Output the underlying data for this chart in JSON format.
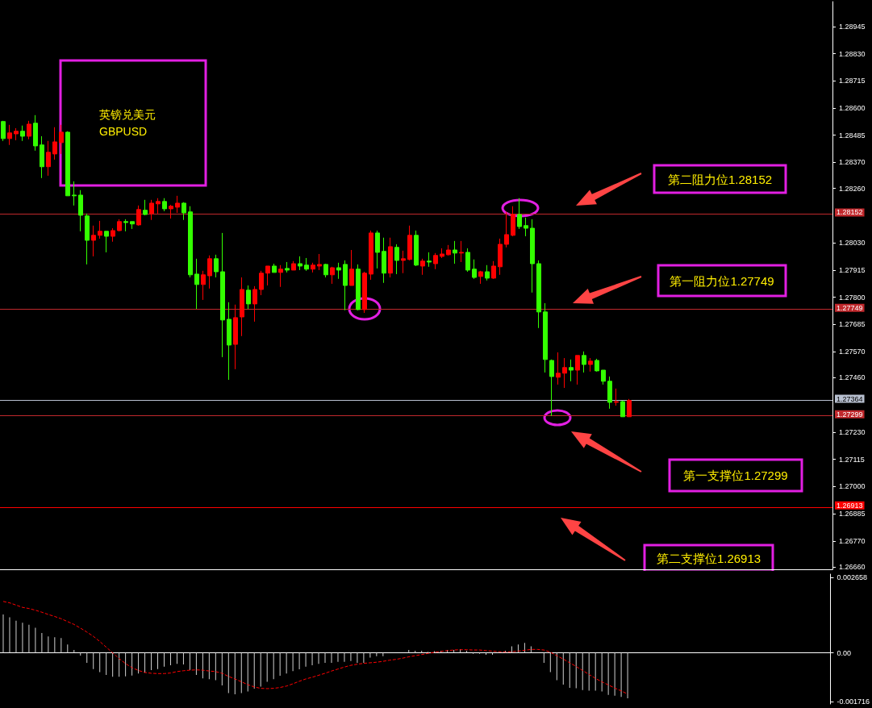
{
  "chart_data": [
    {
      "type": "candlestick",
      "title": "英镑兑美元",
      "subtitle": "GBPUSD",
      "categories": [
        null,
        null,
        null,
        null,
        null,
        null,
        null,
        null,
        null,
        null,
        null,
        null,
        null,
        null,
        null,
        null,
        null,
        null,
        null,
        null,
        null,
        null,
        null,
        null,
        null,
        null,
        null,
        null,
        null,
        null,
        null,
        null,
        null,
        null,
        null,
        null,
        null,
        null,
        null,
        null,
        null,
        null,
        null,
        null,
        null,
        null,
        null,
        null,
        null,
        null,
        null,
        null,
        null,
        null,
        null,
        null,
        null,
        null,
        null,
        null,
        null,
        null,
        null,
        null,
        null,
        null,
        null,
        null,
        null,
        null,
        null,
        null,
        null,
        null,
        null,
        null,
        null,
        null,
        null,
        null,
        null,
        null,
        null,
        null,
        null,
        null,
        null,
        null,
        null,
        null,
        null,
        null,
        null,
        null,
        null,
        null,
        null,
        null,
        null,
        null,
        null,
        null,
        null,
        null,
        null,
        null,
        null,
        null,
        null,
        null,
        null,
        null,
        null,
        null,
        null,
        null,
        null,
        null,
        null,
        null,
        null,
        null,
        null,
        null,
        null,
        null,
        null,
        null,
        null
      ],
      "ohlc": [
        [
          1.28543,
          1.28546,
          1.28461,
          1.28471
        ],
        [
          1.28471,
          1.28529,
          1.28444,
          1.28495
        ],
        [
          1.28491,
          1.28515,
          1.28464,
          1.28502
        ],
        [
          1.28502,
          1.28526,
          1.28461,
          1.28481
        ],
        [
          1.28481,
          1.28546,
          1.28468,
          1.28532
        ],
        [
          1.28536,
          1.2857,
          1.2842,
          1.2844
        ],
        [
          1.28444,
          1.28481,
          1.28304,
          1.28352
        ],
        [
          1.28352,
          1.28461,
          1.28314,
          1.28413
        ],
        [
          1.28406,
          1.28519,
          1.28382,
          1.28457
        ],
        [
          1.28454,
          1.28529,
          1.28406,
          1.28498
        ],
        [
          1.28498,
          1.28502,
          1.28229,
          1.28229
        ],
        [
          1.28232,
          1.2829,
          1.28188,
          1.28229
        ],
        [
          1.28232,
          1.28253,
          1.28079,
          1.28147
        ],
        [
          1.28144,
          1.28154,
          1.27939,
          1.28041
        ],
        [
          1.28041,
          1.28103,
          1.27973,
          1.28062
        ],
        [
          1.28062,
          1.28123,
          1.28048,
          1.28079
        ],
        [
          1.28079,
          1.28079,
          1.2799,
          1.28058
        ],
        [
          1.28058,
          1.28092,
          1.28035,
          1.28082
        ],
        [
          1.28082,
          1.2813,
          1.28079,
          1.2812
        ],
        [
          1.2812,
          1.2813,
          1.28079,
          1.28116
        ],
        [
          1.2812,
          1.2812,
          1.28089,
          1.2811
        ],
        [
          1.28106,
          1.28188,
          1.28103,
          1.28171
        ],
        [
          1.28168,
          1.28212,
          1.28147,
          1.2815
        ],
        [
          1.28154,
          1.28212,
          1.28127,
          1.28198
        ],
        [
          1.28195,
          1.28219,
          1.28154,
          1.28205
        ],
        [
          1.28205,
          1.28219,
          1.28164,
          1.28174
        ],
        [
          1.28174,
          1.28191,
          1.28133,
          1.28185
        ],
        [
          1.28181,
          1.28229,
          1.28157,
          1.28198
        ],
        [
          1.28198,
          1.28202,
          1.28127,
          1.28157
        ],
        [
          1.28161,
          1.28185,
          1.27884,
          1.27895
        ],
        [
          1.27898,
          1.27963,
          1.27751,
          1.27854
        ],
        [
          1.27854,
          1.27912,
          1.27789,
          1.27895
        ],
        [
          1.27891,
          1.27977,
          1.27837,
          1.27963
        ],
        [
          1.27963,
          1.2798,
          1.27884,
          1.27908
        ],
        [
          1.27908,
          1.28072,
          1.27547,
          1.27704
        ],
        [
          1.27707,
          1.27779,
          1.27451,
          1.27598
        ],
        [
          1.27601,
          1.27769,
          1.27496,
          1.27714
        ],
        [
          1.27717,
          1.27884,
          1.27636,
          1.27833
        ],
        [
          1.2783,
          1.2785,
          1.27751,
          1.27772
        ],
        [
          1.27772,
          1.27847,
          1.27697,
          1.27833
        ],
        [
          1.27833,
          1.27912,
          1.27809,
          1.27902
        ],
        [
          1.27902,
          1.27932,
          1.2785,
          1.27932
        ],
        [
          1.27932,
          1.27942,
          1.27905,
          1.27905
        ],
        [
          1.27905,
          1.27936,
          1.27844,
          1.27919
        ],
        [
          1.27922,
          1.27949,
          1.27905,
          1.27915
        ],
        [
          1.27915,
          1.27953,
          1.27915,
          1.27942
        ],
        [
          1.27942,
          1.27973,
          1.27915,
          1.27932
        ],
        [
          1.27936,
          1.27966,
          1.27912,
          1.27919
        ],
        [
          1.27919,
          1.27946,
          1.27905,
          1.27936
        ],
        [
          1.27932,
          1.27983,
          1.27915,
          1.27939
        ],
        [
          1.27939,
          1.27942,
          1.27884,
          1.27895
        ],
        [
          1.27895,
          1.27929,
          1.27857,
          1.27925
        ],
        [
          1.27925,
          1.27946,
          1.27878,
          1.27915
        ],
        [
          1.27939,
          1.27956,
          1.27745,
          1.2785
        ],
        [
          1.2785,
          1.28,
          1.2785,
          1.27919
        ],
        [
          1.27919,
          1.27939,
          1.27745,
          1.27748
        ],
        [
          1.27748,
          1.27908,
          1.27734,
          1.27902
        ],
        [
          1.27898,
          1.28082,
          1.27874,
          1.28072
        ],
        [
          1.28072,
          1.28082,
          1.27922,
          1.2799
        ],
        [
          1.27994,
          1.28052,
          1.27861,
          1.27902
        ],
        [
          1.27902,
          1.28052,
          1.27884,
          1.28014
        ],
        [
          1.28011,
          1.28024,
          1.27898,
          1.27956
        ],
        [
          1.27956,
          1.27997,
          1.27902,
          1.27963
        ],
        [
          1.2796,
          1.28103,
          1.27956,
          1.28062
        ],
        [
          1.28062,
          1.28082,
          1.27932,
          1.27936
        ],
        [
          1.27932,
          1.27963,
          1.27895,
          1.27953
        ],
        [
          1.27953,
          1.2799,
          1.27929,
          1.27949
        ],
        [
          1.27942,
          1.27987,
          1.27919,
          1.27977
        ],
        [
          1.27973,
          1.28007,
          1.27966,
          1.27983
        ],
        [
          1.2798,
          1.28021,
          1.27977,
          1.28
        ],
        [
          1.28,
          1.28038,
          1.27942,
          1.27987
        ],
        [
          1.27987,
          1.28038,
          1.27949,
          1.2799
        ],
        [
          1.2799,
          1.28007,
          1.27908,
          1.27915
        ],
        [
          1.27919,
          1.2796,
          1.27878,
          1.27884
        ],
        [
          1.27888,
          1.27912,
          1.27857,
          1.27908
        ],
        [
          1.27908,
          1.27936,
          1.27871,
          1.27881
        ],
        [
          1.27881,
          1.27953,
          1.27878,
          1.27932
        ],
        [
          1.27929,
          1.28048,
          1.27895,
          1.28024
        ],
        [
          1.28024,
          1.28161,
          1.28011,
          1.28065
        ],
        [
          1.28062,
          1.28185,
          1.28058,
          1.2815
        ],
        [
          1.2815,
          1.28219,
          1.28089,
          1.28099
        ],
        [
          1.28103,
          1.28137,
          1.28058,
          1.28092
        ],
        [
          1.28092,
          1.2813,
          1.2782,
          1.27942
        ],
        [
          1.27942,
          1.27956,
          1.2767,
          1.27738
        ],
        [
          1.27738,
          1.27775,
          1.27482,
          1.27537
        ],
        [
          1.27533,
          1.27537,
          1.27298,
          1.27465
        ],
        [
          1.27462,
          1.27567,
          1.27431,
          1.27479
        ],
        [
          1.27479,
          1.27543,
          1.27417,
          1.27503
        ],
        [
          1.27503,
          1.27537,
          1.27445,
          1.27492
        ],
        [
          1.27492,
          1.27554,
          1.27431,
          1.27554
        ],
        [
          1.27554,
          1.27571,
          1.27482,
          1.27516
        ],
        [
          1.27516,
          1.27543,
          1.27486,
          1.2753
        ],
        [
          1.27533,
          1.2754,
          1.27486,
          1.27489
        ],
        [
          1.27492,
          1.27492,
          1.27431,
          1.27445
        ],
        [
          1.27445,
          1.27465,
          1.27329,
          1.27356
        ],
        [
          1.27356,
          1.27414,
          1.27342,
          1.27359
        ],
        [
          1.27359,
          1.27363,
          1.27295,
          1.27295
        ],
        [
          1.27295,
          1.2737,
          1.27295,
          1.27364
        ],
        null,
        null,
        null,
        null,
        null,
        null,
        null,
        null,
        null,
        null,
        null,
        null,
        null,
        null,
        null,
        null,
        null,
        null,
        null,
        null,
        null,
        null,
        null,
        null,
        null,
        null,
        null,
        null,
        null,
        null,
        null
      ],
      "ylim": [
        1.2665,
        1.2905
      ],
      "yticks": [
        1.28945,
        {
          "value": 1.2883,
          "label": "1.28830"
        },
        1.28715,
        {
          "value": 1.286,
          "label": "1.28600"
        },
        1.28485,
        {
          "value": 1.2837,
          "label": "1.28370"
        },
        {
          "value": 1.2826,
          "label": "1.28260"
        },
        {
          "value": 1.2803,
          "label": "1.28030"
        },
        1.27915,
        {
          "value": 1.278,
          "label": "1.27800"
        },
        1.27685,
        {
          "value": 1.2757,
          "label": "1.27570"
        },
        {
          "value": 1.2746,
          "label": "1.27460"
        },
        {
          "value": 1.2723,
          "label": "1.27230"
        },
        1.27115,
        {
          "value": 1.27,
          "label": "1.27000"
        },
        1.26885,
        {
          "value": 1.2677,
          "label": "1.26770"
        },
        {
          "value": 1.2666,
          "label": "1.26660"
        }
      ],
      "tick_labels": "y",
      "ref_lines": [
        {
          "axis": "y",
          "value": 1.28152,
          "label": "1.28152",
          "color": "#c0282c"
        },
        {
          "axis": "y",
          "value": 1.27749,
          "label": "1.27749",
          "color": "#c0282c"
        },
        {
          "axis": "y",
          "value": 1.27364,
          "label": "1.27364",
          "color": "#b8c0d0"
        },
        {
          "axis": "y",
          "value": 1.27299,
          "label": "1.27299",
          "color": "#c0282c"
        },
        {
          "axis": "y",
          "value": 1.26913,
          "label": "1.26913",
          "color": "#ff0000"
        }
      ],
      "annotations": [
        "第二阻力位1.28152",
        "第一阻力位1.27749",
        "第一支撑位1.27299",
        "第二支撑位1.26913"
      ]
    },
    {
      "type": "bar",
      "categories": [
        null,
        null,
        null,
        null,
        null,
        null,
        null,
        null,
        null,
        null,
        null,
        null,
        null,
        null,
        null,
        null,
        null,
        null,
        null,
        null,
        null,
        null,
        null,
        null,
        null,
        null,
        null,
        null,
        null,
        null,
        null,
        null,
        null,
        null,
        null,
        null,
        null,
        null,
        null,
        null,
        null,
        null,
        null,
        null,
        null,
        null,
        null,
        null,
        null,
        null,
        null,
        null,
        null,
        null,
        null,
        null,
        null,
        null,
        null,
        null,
        null,
        null,
        null,
        null,
        null,
        null,
        null,
        null,
        null,
        null,
        null,
        null,
        null,
        null,
        null,
        null,
        null,
        null,
        null,
        null,
        null,
        null,
        null,
        null,
        null,
        null,
        null,
        null,
        null,
        null,
        null,
        null,
        null,
        null,
        null,
        null,
        null,
        null,
        null,
        null,
        null,
        null,
        null,
        null,
        null,
        null,
        null,
        null,
        null,
        null,
        null,
        null,
        null,
        null,
        null,
        null,
        null,
        null,
        null,
        null,
        null,
        null,
        null,
        null,
        null,
        null,
        null,
        null,
        null
      ],
      "series": [
        {
          "type": "bar",
          "color": "#d0d0d0",
          "values": [
            0.00135,
            0.00125,
            0.00113,
            0.00106,
            0.00099,
            0.00088,
            0.0007,
            0.00058,
            0.00055,
            0.00052,
            0.00029,
            0.0001,
            -0.0001,
            -0.00035,
            -0.00057,
            -0.00068,
            -0.00078,
            -0.00084,
            -0.00084,
            -0.00083,
            -0.0008,
            -0.00073,
            -0.0007,
            -0.00061,
            -0.00057,
            -0.00049,
            -0.00044,
            -0.00039,
            -0.00041,
            -0.00061,
            -0.00078,
            -0.0009,
            -0.00093,
            -0.00096,
            -0.00115,
            -0.00142,
            -0.00146,
            -0.00142,
            -0.00136,
            -0.00126,
            -0.00119,
            -0.00102,
            -0.00093,
            -0.00081,
            -0.00073,
            -0.00064,
            -0.00058,
            -0.00049,
            -0.00044,
            -0.00039,
            -0.00035,
            -0.00035,
            -0.00032,
            -0.00032,
            -0.00029,
            -0.00035,
            -0.00035,
            -0.00017,
            -0.00012,
            -0.00012,
            0,
            0,
            0,
            0.0001,
            7e-05,
            7e-05,
            4e-05,
            6e-05,
            7e-05,
            0.0001,
            0.0001,
            0.00013,
            7e-05,
            -3e-05,
            -3e-05,
            -7e-05,
            -7e-05,
            3e-05,
            7e-05,
            0.00023,
            0.00029,
            0.00035,
            0.00023,
            0,
            -0.00035,
            -0.00068,
            -0.00096,
            -0.00112,
            -0.00123,
            -0.00125,
            -0.00131,
            -0.00133,
            -0.00133,
            -0.00136,
            -0.00148,
            -0.00151,
            -0.00155,
            -0.0016,
            null,
            null,
            null,
            null,
            null,
            null,
            null,
            null,
            null,
            null,
            null,
            null,
            null,
            null,
            null,
            null,
            null,
            null,
            null,
            null,
            null,
            null,
            null,
            null,
            null,
            null,
            null,
            null,
            null,
            null,
            null
          ]
        },
        {
          "type": "line",
          "color": "#ff0000",
          "values": [
            0.00181,
            0.00176,
            0.00168,
            0.0016,
            0.00156,
            0.0015,
            0.00143,
            0.00135,
            0.00128,
            0.0012,
            0.0011,
            0.001,
            0.00087,
            0.00073,
            0.00058,
            0.0004,
            0.0002,
            0,
            -0.0002,
            -0.00038,
            -0.00052,
            -0.00062,
            -0.00069,
            -0.00072,
            -0.00073,
            -0.00073,
            -0.00071,
            -0.00066,
            -0.00063,
            -0.00061,
            -0.0006,
            -0.00061,
            -0.00064,
            -0.00066,
            -0.00072,
            -0.00083,
            -0.00092,
            -0.00102,
            -0.00112,
            -0.0012,
            -0.00125,
            -0.00126,
            -0.00125,
            -0.00122,
            -0.00117,
            -0.00109,
            -0.001,
            -0.00092,
            -0.00086,
            -0.00079,
            -0.00072,
            -0.00064,
            -0.00057,
            -0.0005,
            -0.00044,
            -0.0004,
            -0.00037,
            -0.00035,
            -0.00033,
            -0.0003,
            -0.00026,
            -0.00023,
            -0.00019,
            -0.00014,
            -0.0001,
            -6e-05,
            -2e-05,
            2e-05,
            5e-05,
            8e-05,
            0.0001,
            0.00011,
            0.00011,
            0.0001,
            0.0001,
            8e-05,
            6e-05,
            4e-05,
            3e-05,
            4e-05,
            6e-05,
            9e-05,
            0.00012,
            0.00012,
            0.0001,
            2e-05,
            -0.0001,
            -0.00022,
            -0.00035,
            -0.00048,
            -0.00062,
            -0.00076,
            -0.0009,
            -0.00102,
            -0.00113,
            -0.00124,
            -0.00134,
            -0.00145,
            null,
            null,
            null,
            null,
            null,
            null,
            null,
            null,
            null,
            null,
            null,
            null,
            null,
            null,
            null,
            null,
            null,
            null,
            null,
            null,
            null,
            null,
            null,
            null,
            null,
            null,
            null,
            null,
            null,
            null,
            null
          ]
        }
      ],
      "ylim": [
        -0.0018,
        0.00277
      ],
      "yticks": [
        0.002658,
        {
          "value": 0,
          "label": "0.00"
        },
        -0.001716
      ],
      "tick_labels": "y",
      "line_style": "dashed"
    }
  ]
}
